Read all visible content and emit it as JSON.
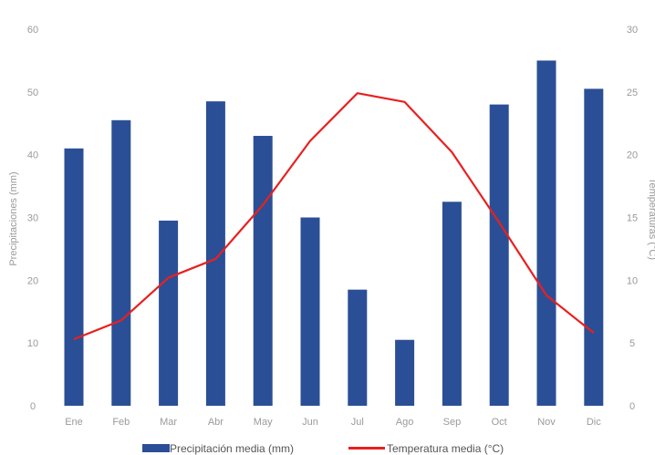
{
  "chart_data": {
    "type": "bar",
    "categories": [
      "Ene",
      "Feb",
      "Mar",
      "Abr",
      "May",
      "Jun",
      "Jul",
      "Ago",
      "Sep",
      "Oct",
      "Nov",
      "Dic"
    ],
    "series": [
      {
        "name": "Precipitación media (mm)",
        "type": "bar",
        "axis": "left",
        "color": "#2b4f96",
        "values": [
          41,
          45.5,
          29.5,
          48.5,
          43,
          30,
          18.5,
          10.5,
          32.5,
          48,
          55,
          50.5
        ]
      },
      {
        "name": "Temperatura media (°C)",
        "type": "line",
        "axis": "right",
        "color": "#e8201f",
        "values": [
          5.3,
          6.8,
          10.2,
          11.7,
          16.0,
          21.1,
          24.9,
          24.2,
          20.2,
          14.6,
          8.8,
          5.8
        ]
      }
    ],
    "ylabel": "Precipitaciones (mm)",
    "y2label": "Temperaturas (°C)",
    "ylim": [
      0,
      60
    ],
    "y2lim": [
      0,
      30
    ],
    "yticks": [
      "0",
      "10",
      "20",
      "30",
      "40",
      "50",
      "60"
    ],
    "y2ticks": [
      "0",
      "5",
      "10",
      "15",
      "20",
      "25",
      "30"
    ],
    "grid": false,
    "legend": "bottom"
  }
}
